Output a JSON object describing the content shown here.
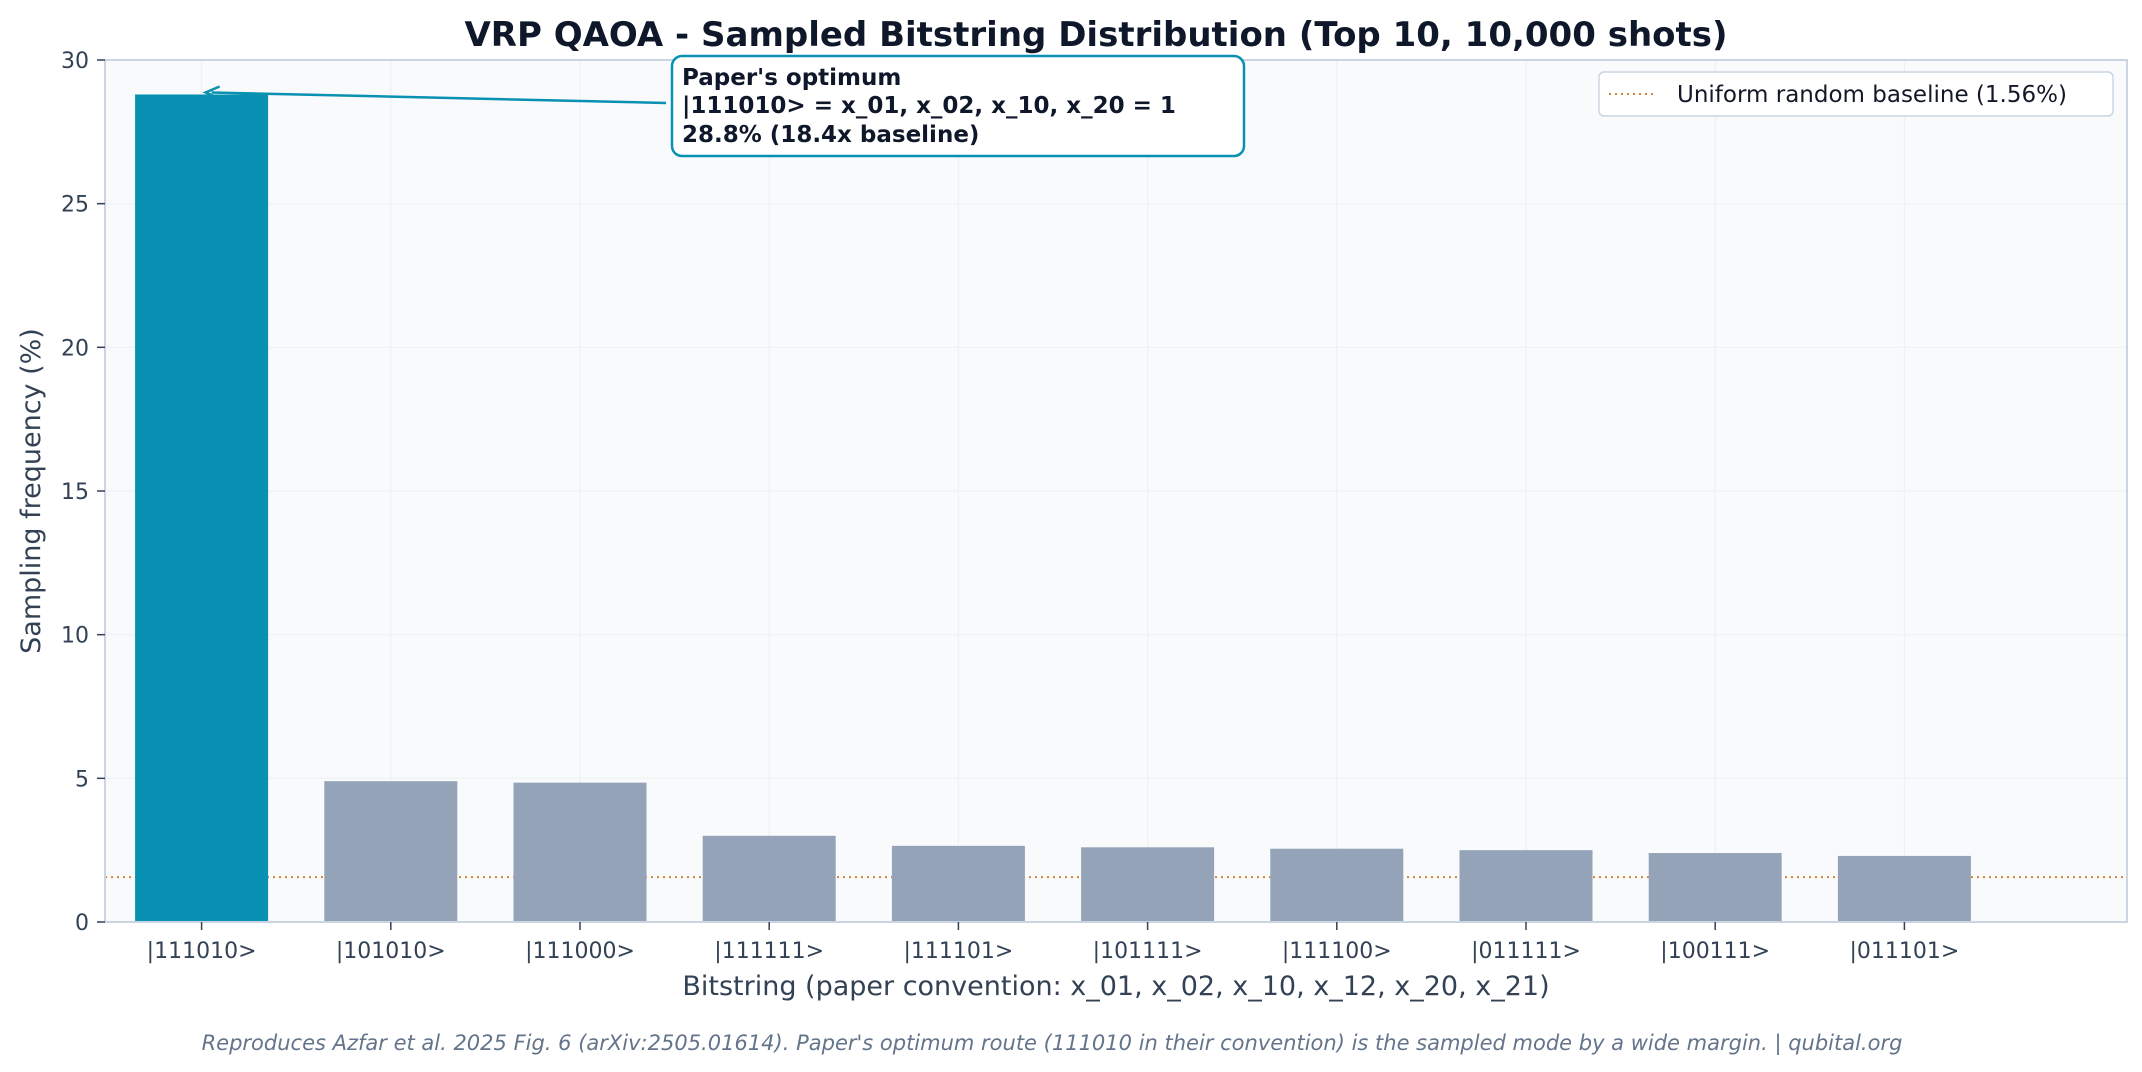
{
  "chart_data": {
    "type": "bar",
    "title": "VRP QAOA - Sampled Bitstring Distribution (Top 10, 10,000 shots)",
    "xlabel": "Bitstring (paper convention: x_01, x_02, x_10, x_12, x_20, x_21)",
    "ylabel": "Sampling frequency (%)",
    "ylim": [
      0,
      30
    ],
    "yticks": [
      0,
      5,
      10,
      15,
      20,
      25,
      30
    ],
    "categories": [
      "|111010>",
      "|101010>",
      "|111000>",
      "|111111>",
      "|111101>",
      "|101111>",
      "|111100>",
      "|011111>",
      "|100111>",
      "|011101>"
    ],
    "values": [
      28.8,
      4.9,
      4.85,
      3.0,
      2.65,
      2.6,
      2.55,
      2.5,
      2.4,
      2.3
    ],
    "highlight_index": 0,
    "baseline": {
      "value": 1.56,
      "label": "Uniform random baseline (1.56%)"
    },
    "legend_position": "top-right",
    "grid": true,
    "annotation": {
      "lines": [
        "Paper's optimum",
        "|111010>  =  x_01, x_02, x_10, x_20 = 1",
        "28.8%  (18.4x baseline)"
      ],
      "points_to_index": 0
    },
    "colors": {
      "highlight": "#0891b2",
      "bar": "#94a3b8",
      "baseline": "#d4873a",
      "plot_bg": "#f8fafc",
      "frame": "#cbd5e1"
    }
  },
  "footer": "Reproduces Azfar et al. 2025 Fig. 6 (arXiv:2505.01614). Paper's optimum route (111010 in their convention) is the sampled mode by a wide margin.  |  qubital.org"
}
